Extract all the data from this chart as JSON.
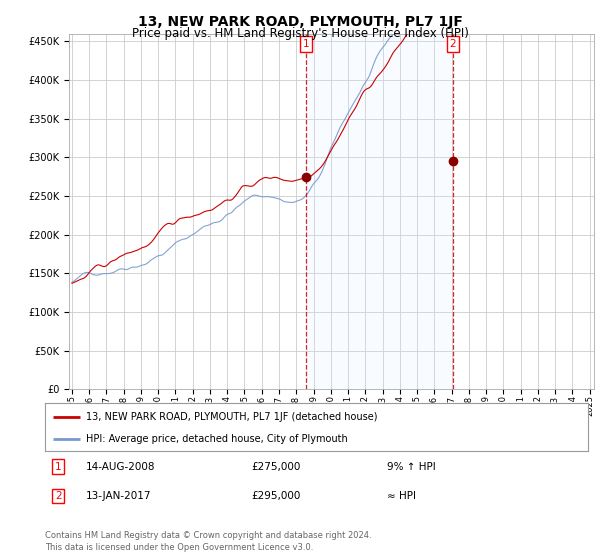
{
  "title": "13, NEW PARK ROAD, PLYMOUTH, PL7 1JF",
  "subtitle": "Price paid vs. HM Land Registry's House Price Index (HPI)",
  "background_color": "#ffffff",
  "plot_bg_color": "#ffffff",
  "grid_color": "#cccccc",
  "hpi_line_color": "#7799cc",
  "price_line_color": "#cc0000",
  "shade_color": "#ddeeff",
  "ylim": [
    0,
    460000
  ],
  "yticks": [
    0,
    50000,
    100000,
    150000,
    200000,
    250000,
    300000,
    350000,
    400000,
    450000
  ],
  "ytick_labels": [
    "£0",
    "£50K",
    "£100K",
    "£150K",
    "£200K",
    "£250K",
    "£300K",
    "£350K",
    "£400K",
    "£450K"
  ],
  "legend_line1": "13, NEW PARK ROAD, PLYMOUTH, PL7 1JF (detached house)",
  "legend_line2": "HPI: Average price, detached house, City of Plymouth",
  "table_row1": [
    "1",
    "14-AUG-2008",
    "£275,000",
    "9% ↑ HPI"
  ],
  "table_row2": [
    "2",
    "13-JAN-2017",
    "£295,000",
    "≈ HPI"
  ],
  "footer": "Contains HM Land Registry data © Crown copyright and database right 2024.\nThis data is licensed under the Open Government Licence v3.0.",
  "title_fontsize": 10,
  "subtitle_fontsize": 8.5,
  "marker1_month_idx": 163,
  "marker1_value": 275000,
  "marker2_month_idx": 265,
  "marker2_value": 295000,
  "num_months": 361
}
